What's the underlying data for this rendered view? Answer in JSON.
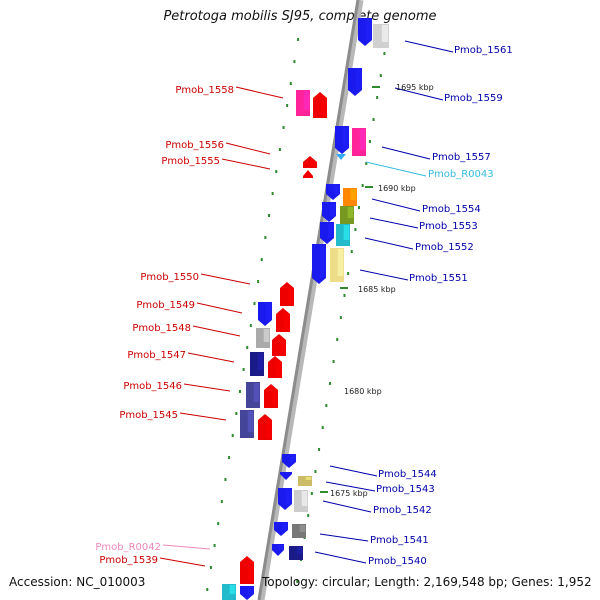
{
  "title": "Petrotoga mobilis SJ95, complete genome",
  "footer": {
    "accession": "Accession: NC_010003",
    "summary": "Topology: circular; Length: 2,169,548 bp; Genes: 1,952"
  },
  "colors": {
    "backbone": "#8c8c8c",
    "tick": "#2e8b2e",
    "left_label": "#cc0000",
    "right_label": "#0000aa",
    "rna_right": "#33bbdd",
    "rna_left": "#ee88bb"
  },
  "scale_labels": [
    "1695 kbp",
    "1690 kbp",
    "1685 kbp",
    "1680 kbp",
    "1675 kbp"
  ],
  "genes_right": [
    {
      "name": "Pmob_1561",
      "color": "#0000aa"
    },
    {
      "name": "Pmob_1559",
      "color": "#0000aa"
    },
    {
      "name": "Pmob_1557",
      "color": "#0000aa"
    },
    {
      "name": "Pmob_R0043",
      "color": "#33bbdd"
    },
    {
      "name": "Pmob_1554",
      "color": "#0000aa"
    },
    {
      "name": "Pmob_1553",
      "color": "#0000aa"
    },
    {
      "name": "Pmob_1552",
      "color": "#0000aa"
    },
    {
      "name": "Pmob_1551",
      "color": "#0000aa"
    },
    {
      "name": "Pmob_1544",
      "color": "#0000aa"
    },
    {
      "name": "Pmob_1543",
      "color": "#0000aa"
    },
    {
      "name": "Pmob_1542",
      "color": "#0000aa"
    },
    {
      "name": "Pmob_1541",
      "color": "#0000aa"
    },
    {
      "name": "Pmob_1540",
      "color": "#0000aa"
    }
  ],
  "genes_left": [
    {
      "name": "Pmob_1558",
      "color": "#cc0000"
    },
    {
      "name": "Pmob_1556",
      "color": "#cc0000"
    },
    {
      "name": "Pmob_1555",
      "color": "#cc0000"
    },
    {
      "name": "Pmob_1550",
      "color": "#cc0000"
    },
    {
      "name": "Pmob_1549",
      "color": "#cc0000"
    },
    {
      "name": "Pmob_1548",
      "color": "#cc0000"
    },
    {
      "name": "Pmob_1547",
      "color": "#cc0000"
    },
    {
      "name": "Pmob_1546",
      "color": "#cc0000"
    },
    {
      "name": "Pmob_1545",
      "color": "#cc0000"
    },
    {
      "name": "Pmob_R0042",
      "color": "#ee88bb"
    },
    {
      "name": "Pmob_1539",
      "color": "#cc0000"
    }
  ]
}
